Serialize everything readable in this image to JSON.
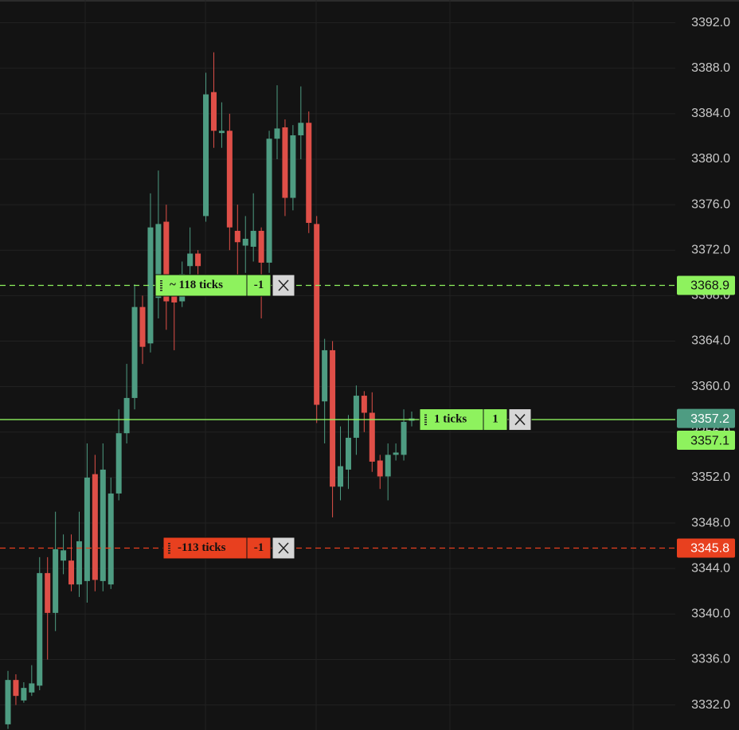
{
  "chart_data": {
    "type": "candlestick",
    "ylim": [
      3329.8,
      3394.0
    ],
    "yticks": [
      {
        "value": 3332,
        "label": "3332.0"
      },
      {
        "value": 3336,
        "label": "3336.0"
      },
      {
        "value": 3340,
        "label": "3340.0"
      },
      {
        "value": 3344,
        "label": "3344.0"
      },
      {
        "value": 3348,
        "label": "3348.0"
      },
      {
        "value": 3352,
        "label": "3352.0"
      },
      {
        "value": 3356,
        "label": "3356.0"
      },
      {
        "value": 3360,
        "label": "3360.0"
      },
      {
        "value": 3364,
        "label": "3364.0"
      },
      {
        "value": 3368,
        "label": "3368.0"
      },
      {
        "value": 3372,
        "label": "3372.0"
      },
      {
        "value": 3376,
        "label": "3376.0"
      },
      {
        "value": 3380,
        "label": "3380.0"
      },
      {
        "value": 3384,
        "label": "3384.0"
      },
      {
        "value": 3388,
        "label": "3388.0"
      },
      {
        "value": 3392,
        "label": "3392.0"
      }
    ],
    "grid": true,
    "up_color": "#4e9c82",
    "down_color": "#df4f48",
    "open": [
      3330.3,
      3334.2,
      3332.4,
      3333.1,
      3333.7,
      3343.6,
      3340.1,
      3344.7,
      3344.7,
      3342.6,
      3342.9,
      3352.3,
      3342.9,
      3342.6,
      3350.6,
      3355.9,
      3359.0,
      3367.0,
      3363.8,
      3367.8,
      3374.5,
      3368.4,
      3367.5,
      3370.6,
      3371.7,
      3375.0,
      3385.9,
      3382.3,
      3382.5,
      3373.7,
      3372.4,
      3372.3,
      3373.7,
      3370.9,
      3381.8,
      3382.8,
      3376.6,
      3382.1,
      3383.2,
      3374.3,
      3358.7,
      3363.2,
      3351.2,
      3352.7,
      3355.5,
      3359.2,
      3357.7,
      3353.5,
      3352.1,
      3354.0,
      3354.0,
      3357.0
    ],
    "high": [
      3335.0,
      3334.7,
      3334.0,
      3335.5,
      3345.0,
      3345.0,
      3349.0,
      3347.0,
      3347.0,
      3349.0,
      3355.0,
      3354.0,
      3355.0,
      3352.0,
      3358.0,
      3362.0,
      3369.0,
      3368.0,
      3377.0,
      3379.0,
      3376.0,
      3369.5,
      3371.0,
      3374.0,
      3372.0,
      3387.6,
      3389.4,
      3385.0,
      3384.0,
      3376.0,
      3375.0,
      3377.0,
      3374.0,
      3382.5,
      3386.5,
      3383.5,
      3383.0,
      3386.4,
      3384.2,
      3375.0,
      3364.2,
      3364.0,
      3356.5,
      3357.5,
      3360.1,
      3359.6,
      3359.5,
      3354.0,
      3355.0,
      3355.0,
      3358.0,
      3357.8
    ],
    "low": [
      3329.9,
      3332.0,
      3332.2,
      3332.8,
      3333.3,
      3336.0,
      3338.5,
      3343.5,
      3342.0,
      3341.5,
      3341.0,
      3342.0,
      3342.0,
      3342.2,
      3350.0,
      3355.0,
      3358.0,
      3362.0,
      3363.0,
      3366.0,
      3365.0,
      3363.2,
      3367.0,
      3369.0,
      3369.5,
      3374.5,
      3381.0,
      3381.0,
      3372.0,
      3369.0,
      3370.0,
      3371.0,
      3366.0,
      3370.0,
      3380.0,
      3375.0,
      3375.5,
      3380.0,
      3373.5,
      3356.8,
      3355.0,
      3348.5,
      3350.0,
      3351.0,
      3354.0,
      3356.0,
      3352.5,
      3351.0,
      3350.0,
      3353.5,
      3353.5,
      3356.5
    ],
    "close": [
      3334.2,
      3332.8,
      3333.5,
      3333.9,
      3343.6,
      3340.1,
      3345.7,
      3345.6,
      3342.6,
      3346.4,
      3352.0,
      3343.0,
      3352.7,
      3350.6,
      3355.9,
      3359.0,
      3367.0,
      3363.5,
      3374.0,
      3374.3,
      3367.5,
      3367.4,
      3369.9,
      3371.7,
      3370.6,
      3385.7,
      3382.5,
      3382.5,
      3374.0,
      3372.7,
      3373.0,
      3373.7,
      3370.9,
      3381.8,
      3382.7,
      3376.6,
      3382.1,
      3383.2,
      3374.4,
      3358.4,
      3363.2,
      3351.2,
      3353.0,
      3355.5,
      3359.2,
      3357.7,
      3353.4,
      3352.1,
      3354.0,
      3354.2,
      3356.9,
      3357.2
    ],
    "current_price": 3357.2,
    "current_price_color": "#4e9c82",
    "position": {
      "price": 3357.1,
      "ticks": "1 ticks",
      "qty": "1",
      "color": "#8ef25e"
    },
    "orders": [
      {
        "price": 3368.9,
        "ticks": "~ 118 ticks",
        "qty": "-1",
        "color": "#8ef25e"
      },
      {
        "price": 3345.8,
        "ticks": "-113 ticks",
        "qty": "-1",
        "color": "#e8401f"
      }
    ]
  }
}
